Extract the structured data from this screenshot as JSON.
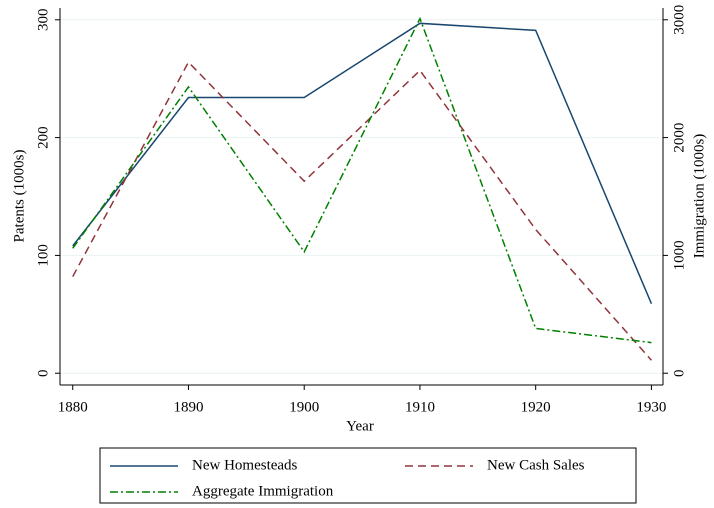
{
  "chart_data": {
    "type": "line",
    "x_label": "Year",
    "y_label": "Patents (1000s)",
    "y2_label": "Immigration (1000s)",
    "x": [
      1880,
      1890,
      1900,
      1910,
      1920,
      1930
    ],
    "series": [
      {
        "name": "New Homesteads",
        "color": "#1a476f",
        "dash": "",
        "values": [
          108,
          234,
          234,
          297,
          291,
          59
        ]
      },
      {
        "name": "New Cash Sales",
        "color": "#90353b",
        "dash": "8,5",
        "values": [
          82,
          264,
          163,
          257,
          122,
          11
        ]
      },
      {
        "name": "Aggregate Immigration",
        "color": "#008000",
        "dash": "8,3,2,3",
        "axis": "y2",
        "values": [
          1060,
          2430,
          1030,
          3010,
          380,
          260
        ]
      }
    ],
    "xlim": [
      1878.9,
      1931
    ],
    "xticks": [
      1880,
      1890,
      1900,
      1910,
      1920,
      1930
    ],
    "ylim": [
      -10,
      310
    ],
    "yticks": [
      0,
      100,
      200,
      300
    ],
    "y2lim": [
      -100,
      3100
    ],
    "y2ticks": [
      0,
      1000,
      2000,
      3000
    ],
    "grid": true,
    "legend": "bottom"
  }
}
